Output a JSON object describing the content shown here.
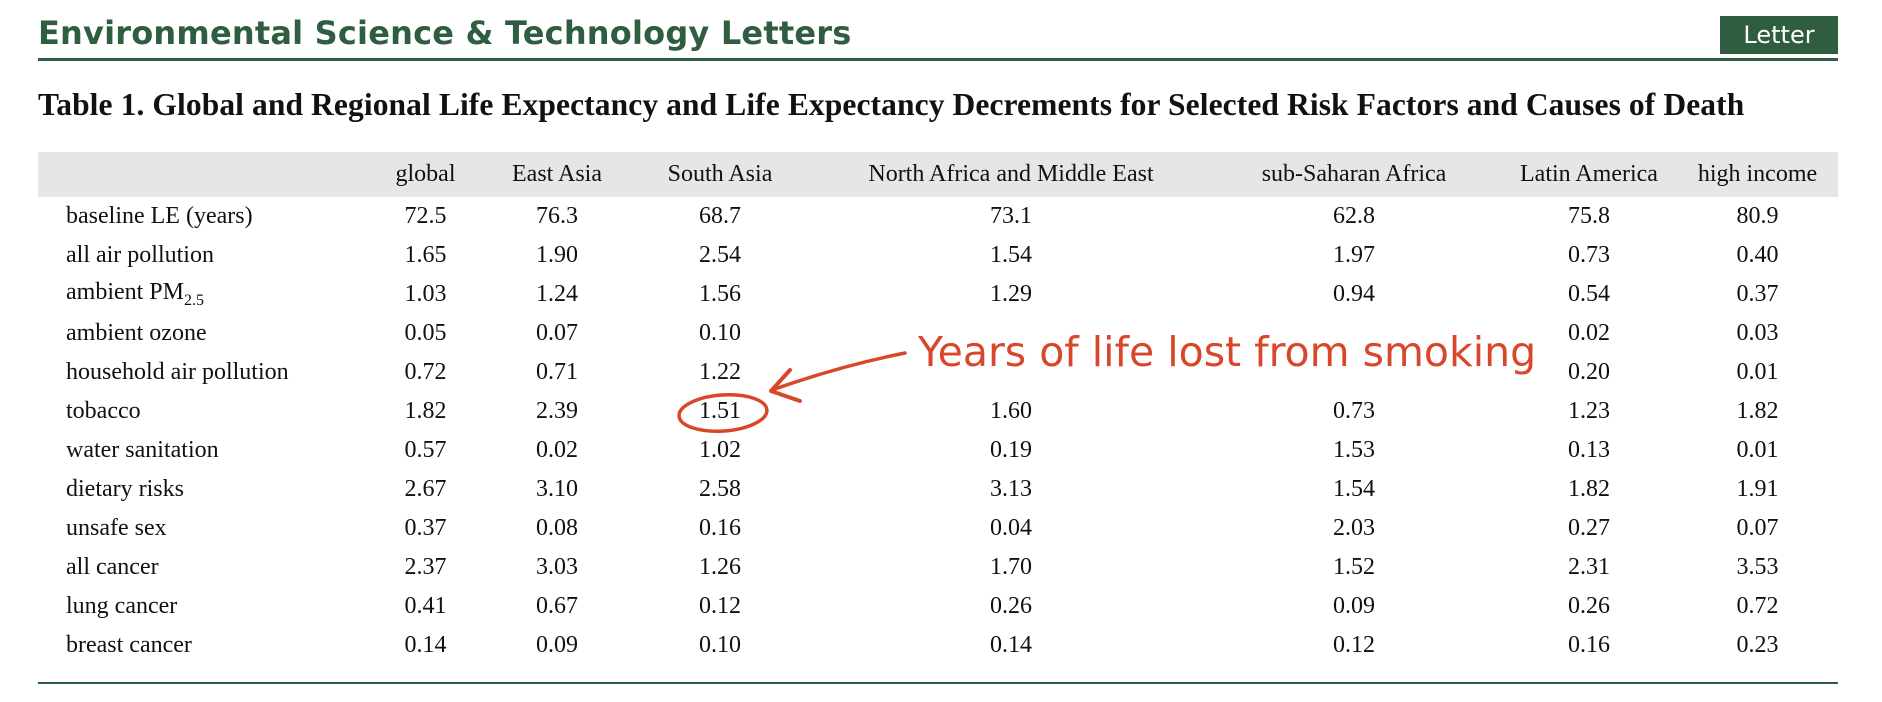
{
  "header": {
    "journal_title": "Environmental Science & Technology Letters",
    "doc_type": "Letter",
    "accent_color": "#2e5d3f"
  },
  "table": {
    "caption": "Table 1. Global and Regional Life Expectancy and Life Expectancy Decrements for Selected Risk Factors and Causes of Death",
    "columns": [
      "",
      "global",
      "East Asia",
      "South Asia",
      "North Africa and Middle East",
      "sub-Saharan Africa",
      "Latin America",
      "high income"
    ],
    "rows": [
      {
        "label": "baseline LE (years)",
        "values": [
          "72.5",
          "76.3",
          "68.7",
          "73.1",
          "62.8",
          "75.8",
          "80.9"
        ]
      },
      {
        "label": "all air pollution",
        "values": [
          "1.65",
          "1.90",
          "2.54",
          "1.54",
          "1.97",
          "0.73",
          "0.40"
        ]
      },
      {
        "label": "ambient PM",
        "label_sub": "2.5",
        "values": [
          "1.03",
          "1.24",
          "1.56",
          "1.29",
          "0.94",
          "0.54",
          "0.37"
        ]
      },
      {
        "label": "ambient ozone",
        "values": [
          "0.05",
          "0.07",
          "0.10",
          "",
          "",
          "0.02",
          "0.03"
        ]
      },
      {
        "label": "household air pollution",
        "values": [
          "0.72",
          "0.71",
          "1.22",
          "",
          "",
          "0.20",
          "0.01"
        ]
      },
      {
        "label": "tobacco",
        "values": [
          "1.82",
          "2.39",
          "1.51",
          "1.60",
          "0.73",
          "1.23",
          "1.82"
        ]
      },
      {
        "label": "water sanitation",
        "values": [
          "0.57",
          "0.02",
          "1.02",
          "0.19",
          "1.53",
          "0.13",
          "0.01"
        ]
      },
      {
        "label": "dietary risks",
        "values": [
          "2.67",
          "3.10",
          "2.58",
          "3.13",
          "1.54",
          "1.82",
          "1.91"
        ]
      },
      {
        "label": "unsafe sex",
        "values": [
          "0.37",
          "0.08",
          "0.16",
          "0.04",
          "2.03",
          "0.27",
          "0.07"
        ]
      },
      {
        "label": "all cancer",
        "values": [
          "2.37",
          "3.03",
          "1.26",
          "1.70",
          "1.52",
          "2.31",
          "3.53"
        ]
      },
      {
        "label": "lung cancer",
        "values": [
          "0.41",
          "0.67",
          "0.12",
          "0.26",
          "0.09",
          "0.26",
          "0.72"
        ]
      },
      {
        "label": "breast cancer",
        "values": [
          "0.14",
          "0.09",
          "0.10",
          "0.14",
          "0.12",
          "0.16",
          "0.23"
        ]
      }
    ]
  },
  "annotation": {
    "text": "Years of life lost from smoking",
    "color": "#d9472a"
  }
}
